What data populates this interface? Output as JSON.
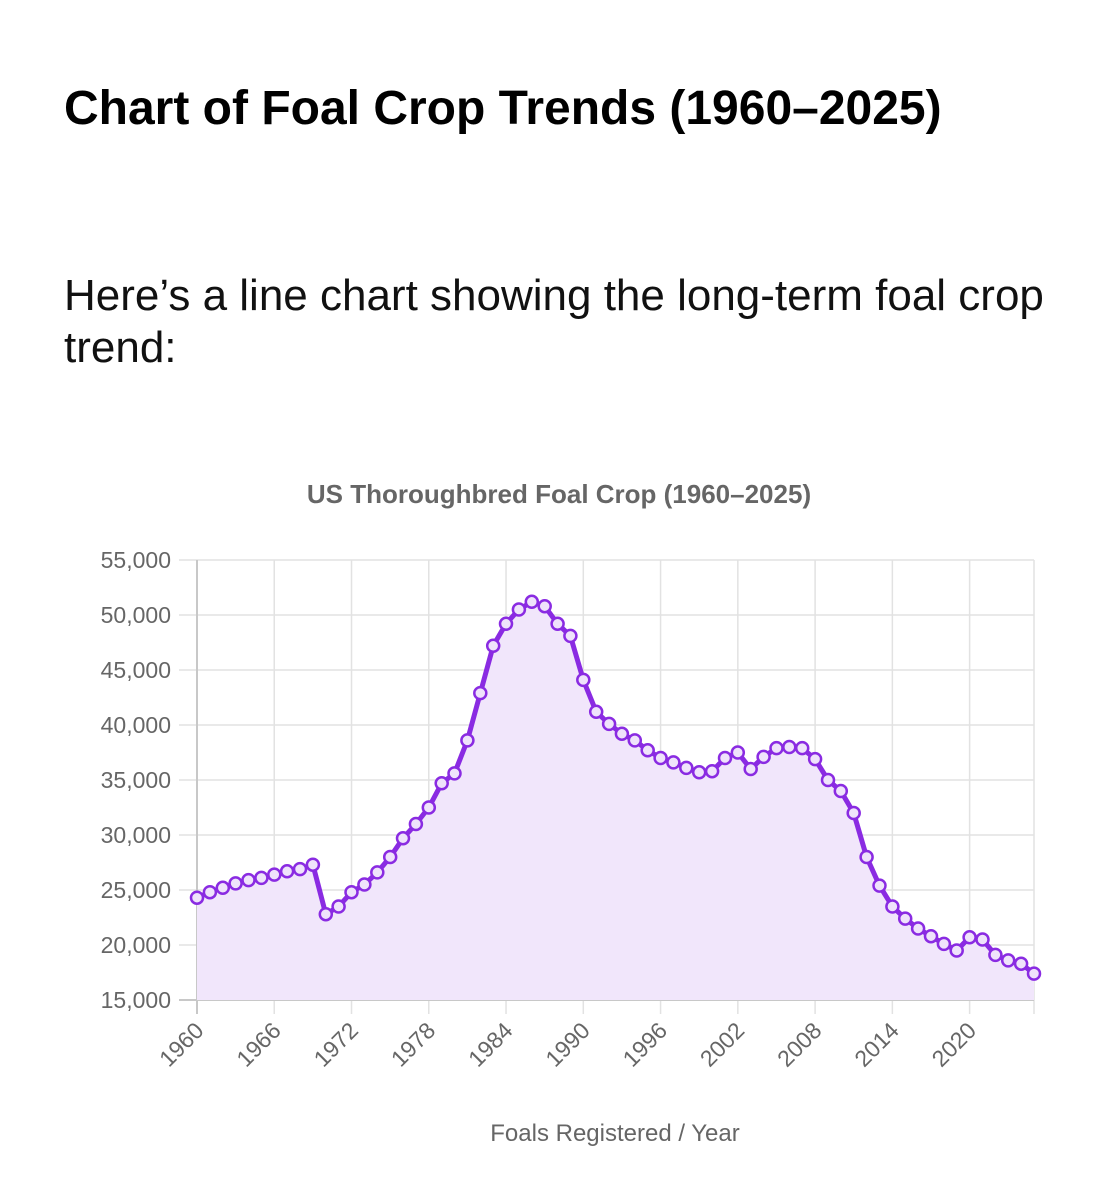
{
  "article": {
    "heading": "Chart of Foal Crop Trends (1960–2025)",
    "intro": "Here’s a line chart showing the long-term foal crop trend:"
  },
  "chart_data": {
    "type": "line",
    "title": "US Thoroughbred Foal Crop (1960–2025)",
    "xlabel": "Foals Registered / Year",
    "ylabel": "",
    "ylim": [
      15000,
      55000
    ],
    "y_ticks": [
      "55,000",
      "50,000",
      "45,000",
      "40,000",
      "35,000",
      "30,000",
      "25,000",
      "20,000",
      "15,000"
    ],
    "x_tick_labels": [
      "1960",
      "1966",
      "1972",
      "1978",
      "1984",
      "1990",
      "1996",
      "2002",
      "2008",
      "2014",
      "2020"
    ],
    "grid": true,
    "fill": true,
    "line_color": "#8a2be2",
    "fill_color": "#f1e6fb",
    "grid_color": "#e2e2e2",
    "series": [
      {
        "x": [
          1960,
          1961,
          1962,
          1963,
          1964,
          1965,
          1966,
          1967,
          1968,
          1969,
          1970,
          1971,
          1972,
          1973,
          1974,
          1975,
          1976,
          1977,
          1978,
          1979,
          1980,
          1981,
          1982,
          1983,
          1984,
          1985,
          1986,
          1987,
          1988,
          1989,
          1990,
          1991,
          1992,
          1993,
          1994,
          1995,
          1996,
          1997,
          1998,
          1999,
          2000,
          2001,
          2002,
          2003,
          2004,
          2005,
          2006,
          2007,
          2008,
          2009,
          2010,
          2011,
          2012,
          2013,
          2014,
          2015,
          2016,
          2017,
          2018,
          2019,
          2020,
          2021,
          2022,
          2023,
          2024,
          2025
        ],
        "y": [
          24300,
          24800,
          25200,
          25600,
          25900,
          26100,
          26400,
          26700,
          26900,
          27300,
          22800,
          23500,
          24800,
          25500,
          26600,
          28000,
          29700,
          31000,
          32500,
          34700,
          35600,
          38600,
          42900,
          47200,
          49200,
          50500,
          51200,
          50800,
          49200,
          48100,
          44100,
          41200,
          40100,
          39200,
          38600,
          37700,
          37000,
          36600,
          36100,
          35700,
          35800,
          37000,
          37500,
          36000,
          37100,
          37900,
          38000,
          37900,
          36900,
          35000,
          34000,
          32000,
          28000,
          25400,
          23500,
          22400,
          21500,
          20800,
          20100,
          19500,
          20700,
          20500,
          19100,
          18600,
          18300,
          17400
        ]
      }
    ]
  }
}
